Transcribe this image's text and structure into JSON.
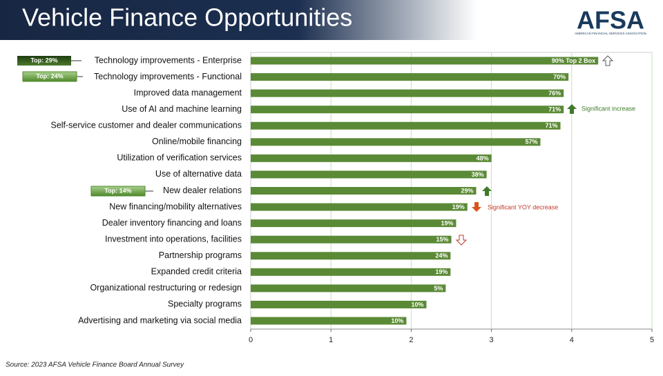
{
  "header": {
    "title": "Vehicle Finance Opportunities",
    "logo": "AFSA",
    "logo_subtitle": "AMERICAN FINANCIAL SERVICES ASSOCIATION"
  },
  "chart_data": {
    "type": "bar",
    "orientation": "horizontal",
    "categories": [
      "Technology improvements - Enterprise",
      "Technology improvements - Functional",
      "Improved data management",
      "Use of AI and machine learning",
      "Self-service customer and dealer communications",
      "Online/mobile financing",
      "Utilization of verification services",
      "Use of alternative data",
      "New dealer relations",
      "New financing/mobility alternatives",
      "Dealer inventory financing and loans",
      "Investment into operations, facilities",
      "Partnership programs",
      "Expanded credit criteria",
      "Organizational restructuring or redesign",
      "Specialty programs",
      "Advertising and marketing via social media"
    ],
    "values": [
      4.33,
      3.96,
      3.9,
      3.9,
      3.86,
      3.61,
      3.0,
      2.94,
      2.81,
      2.7,
      2.56,
      2.5,
      2.49,
      2.49,
      2.43,
      2.19,
      1.94
    ],
    "top2_labels": [
      "90% Top 2 Box",
      "70%",
      "76%",
      "71%",
      "71%",
      "57%",
      "48%",
      "38%",
      "29%",
      "19%",
      "19%",
      "15%",
      "24%",
      "19%",
      "5%",
      "10%",
      "10%"
    ],
    "color": "#5b8a36",
    "xlim": [
      0,
      5
    ],
    "xticks": [
      0,
      1,
      2,
      3,
      4,
      5
    ],
    "grid": true,
    "top_boxes": [
      "Top: 29%",
      "Top: 24%",
      "Top: 14%"
    ],
    "annotations": [
      "Significant increase",
      "Significant YOY decrease"
    ]
  },
  "source": "Source: 2023 AFSA Vehicle Finance Board Annual Survey"
}
